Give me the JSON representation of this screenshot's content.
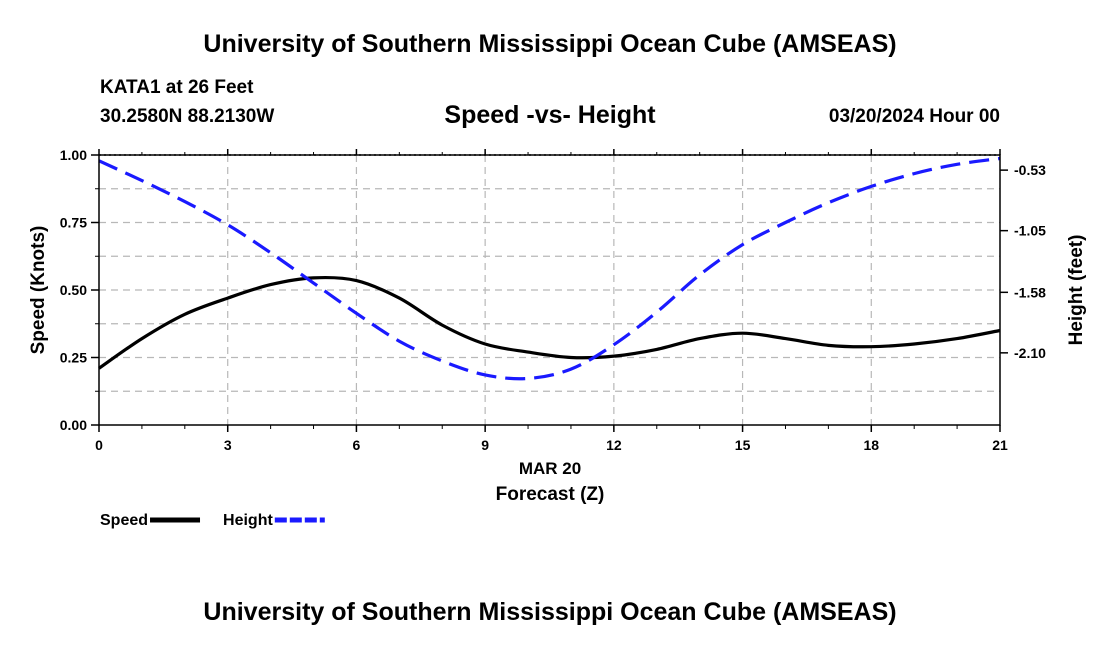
{
  "page": {
    "title": "University of Southern Mississippi Ocean Cube (AMSEAS)",
    "footer_title": "University of Southern Mississippi Ocean Cube (AMSEAS)",
    "station": "KATA1 at 26 Feet",
    "coordinates": "30.2580N  88.2130W",
    "subtitle": "Speed -vs- Height",
    "datetime": "03/20/2024 Hour 00"
  },
  "chart_data": {
    "type": "line",
    "title": "Speed -vs- Height",
    "xlabel": "Forecast (Z)",
    "xsublabel": "MAR 20",
    "ylabel": "Speed (Knots)",
    "y2label": "Height (feet)",
    "xlim": [
      0,
      21
    ],
    "ylim": [
      0,
      1
    ],
    "y2lim": [
      -2.72,
      -0.4
    ],
    "xticks": [
      "0",
      "3",
      "6",
      "9",
      "12",
      "15",
      "18",
      "21"
    ],
    "yticks": [
      "0.00",
      "0.25",
      "0.50",
      "0.75",
      "1.00"
    ],
    "y2ticks": [
      "-0.53",
      "-1.05",
      "-1.58",
      "-2.10"
    ],
    "y2tick_values": [
      -0.53,
      -1.05,
      -1.58,
      -2.1
    ],
    "grid": true,
    "legend_position": "bottom-left",
    "series": [
      {
        "name": "Speed",
        "axis": "left",
        "color": "#000000",
        "style": "solid",
        "x": [
          0,
          1,
          2,
          3,
          4,
          5,
          6,
          7,
          8,
          9,
          10,
          11,
          12,
          13,
          14,
          15,
          16,
          17,
          18,
          19,
          20,
          21
        ],
        "values": [
          0.21,
          0.32,
          0.41,
          0.47,
          0.52,
          0.545,
          0.535,
          0.47,
          0.37,
          0.3,
          0.27,
          0.25,
          0.255,
          0.28,
          0.32,
          0.34,
          0.32,
          0.295,
          0.29,
          0.3,
          0.32,
          0.35
        ]
      },
      {
        "name": "Height",
        "axis": "right",
        "color": "#1a1aff",
        "style": "dashed",
        "x": [
          0,
          1,
          2,
          3,
          4,
          5,
          6,
          7,
          8,
          9,
          10,
          11,
          12,
          13,
          14,
          15,
          16,
          17,
          18,
          19,
          20,
          21
        ],
        "values": [
          -0.45,
          -0.62,
          -0.8,
          -1.0,
          -1.24,
          -1.5,
          -1.76,
          -2.0,
          -2.17,
          -2.29,
          -2.32,
          -2.24,
          -2.03,
          -1.75,
          -1.43,
          -1.17,
          -0.98,
          -0.81,
          -0.67,
          -0.56,
          -0.48,
          -0.43
        ]
      }
    ]
  }
}
